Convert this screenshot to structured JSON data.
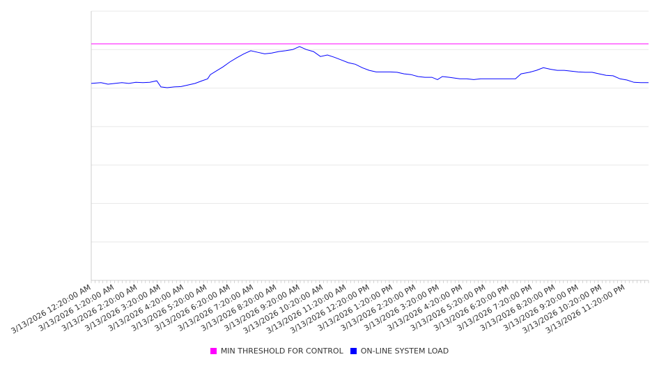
{
  "chart_data": {
    "type": "line",
    "title": "",
    "xlabel": "",
    "ylabel": "",
    "x_unit": "hours since 3/13/2026 12:20:00 AM",
    "xlim": [
      0,
      24
    ],
    "ylim": [
      0,
      700
    ],
    "y_gridlines": [
      0,
      100,
      200,
      300,
      400,
      500,
      600,
      700
    ],
    "y_tick_labels_shown": false,
    "grid": true,
    "legend_position": "bottom",
    "x_tick_labels": [
      "3/13/2026 12:20:00 AM",
      "3/13/2026 1:20:00 AM",
      "3/13/2026 2:20:00 AM",
      "3/13/2026 3:20:00 AM",
      "3/13/2026 4:20:00 AM",
      "3/13/2026 5:20:00 AM",
      "3/13/2026 6:20:00 AM",
      "3/13/2026 7:20:00 AM",
      "3/13/2026 8:20:00 AM",
      "3/13/2026 9:20:00 AM",
      "3/13/2026 10:20:00 AM",
      "3/13/2026 11:20:00 AM",
      "3/13/2026 12:20:00 PM",
      "3/13/2026 1:20:00 PM",
      "3/13/2026 2:20:00 PM",
      "3/13/2026 3:20:00 PM",
      "3/13/2026 4:20:00 PM",
      "3/13/2026 5:20:00 PM",
      "3/13/2026 6:20:00 PM",
      "3/13/2026 7:20:00 PM",
      "3/13/2026 8:20:00 PM",
      "3/13/2026 9:20:00 PM",
      "3/13/2026 10:20:00 PM",
      "3/13/2026 11:20:00 PM"
    ],
    "series": [
      {
        "name": "MIN THRESHOLD FOR CONTROL",
        "color": "#ff00ff",
        "x": [
          0,
          24
        ],
        "values": [
          615,
          615
        ]
      },
      {
        "name": "ON-LINE SYSTEM LOAD",
        "color": "#0000ff",
        "x": [
          0,
          0.42,
          0.72,
          1.02,
          1.32,
          1.62,
          1.92,
          2.22,
          2.52,
          2.82,
          3.0,
          3.27,
          3.57,
          3.87,
          4.17,
          4.47,
          4.77,
          5.01,
          5.13,
          5.43,
          5.67,
          5.97,
          6.27,
          6.57,
          6.87,
          7.17,
          7.47,
          7.77,
          8.07,
          8.37,
          8.67,
          8.97,
          9.27,
          9.57,
          9.87,
          10.17,
          10.47,
          10.77,
          11.07,
          11.37,
          11.67,
          11.97,
          12.27,
          12.57,
          12.87,
          13.17,
          13.47,
          13.77,
          14.07,
          14.37,
          14.67,
          14.91,
          15.12,
          15.42,
          15.87,
          16.17,
          16.47,
          16.77,
          17.07,
          17.37,
          17.67,
          18.27,
          18.51,
          18.87,
          19.17,
          19.47,
          19.77,
          20.07,
          20.37,
          20.67,
          20.97,
          21.27,
          21.57,
          21.87,
          22.17,
          22.47,
          22.77,
          23.07,
          23.37,
          23.67,
          24
        ],
        "values": [
          512,
          514,
          510,
          512,
          514,
          512,
          515,
          514,
          515,
          519,
          503,
          501,
          503,
          504,
          508,
          512,
          519,
          524,
          535,
          546,
          555,
          568,
          579,
          589,
          597,
          593,
          589,
          591,
          595,
          597,
          600,
          608,
          600,
          595,
          582,
          586,
          580,
          573,
          566,
          562,
          553,
          546,
          542,
          542,
          542,
          541,
          537,
          535,
          530,
          528,
          528,
          522,
          530,
          528,
          524,
          524,
          522,
          524,
          524,
          524,
          524,
          524,
          537,
          541,
          546,
          553,
          549,
          546,
          546,
          544,
          542,
          541,
          541,
          537,
          533,
          532,
          524,
          521,
          515,
          514,
          514
        ]
      }
    ]
  }
}
